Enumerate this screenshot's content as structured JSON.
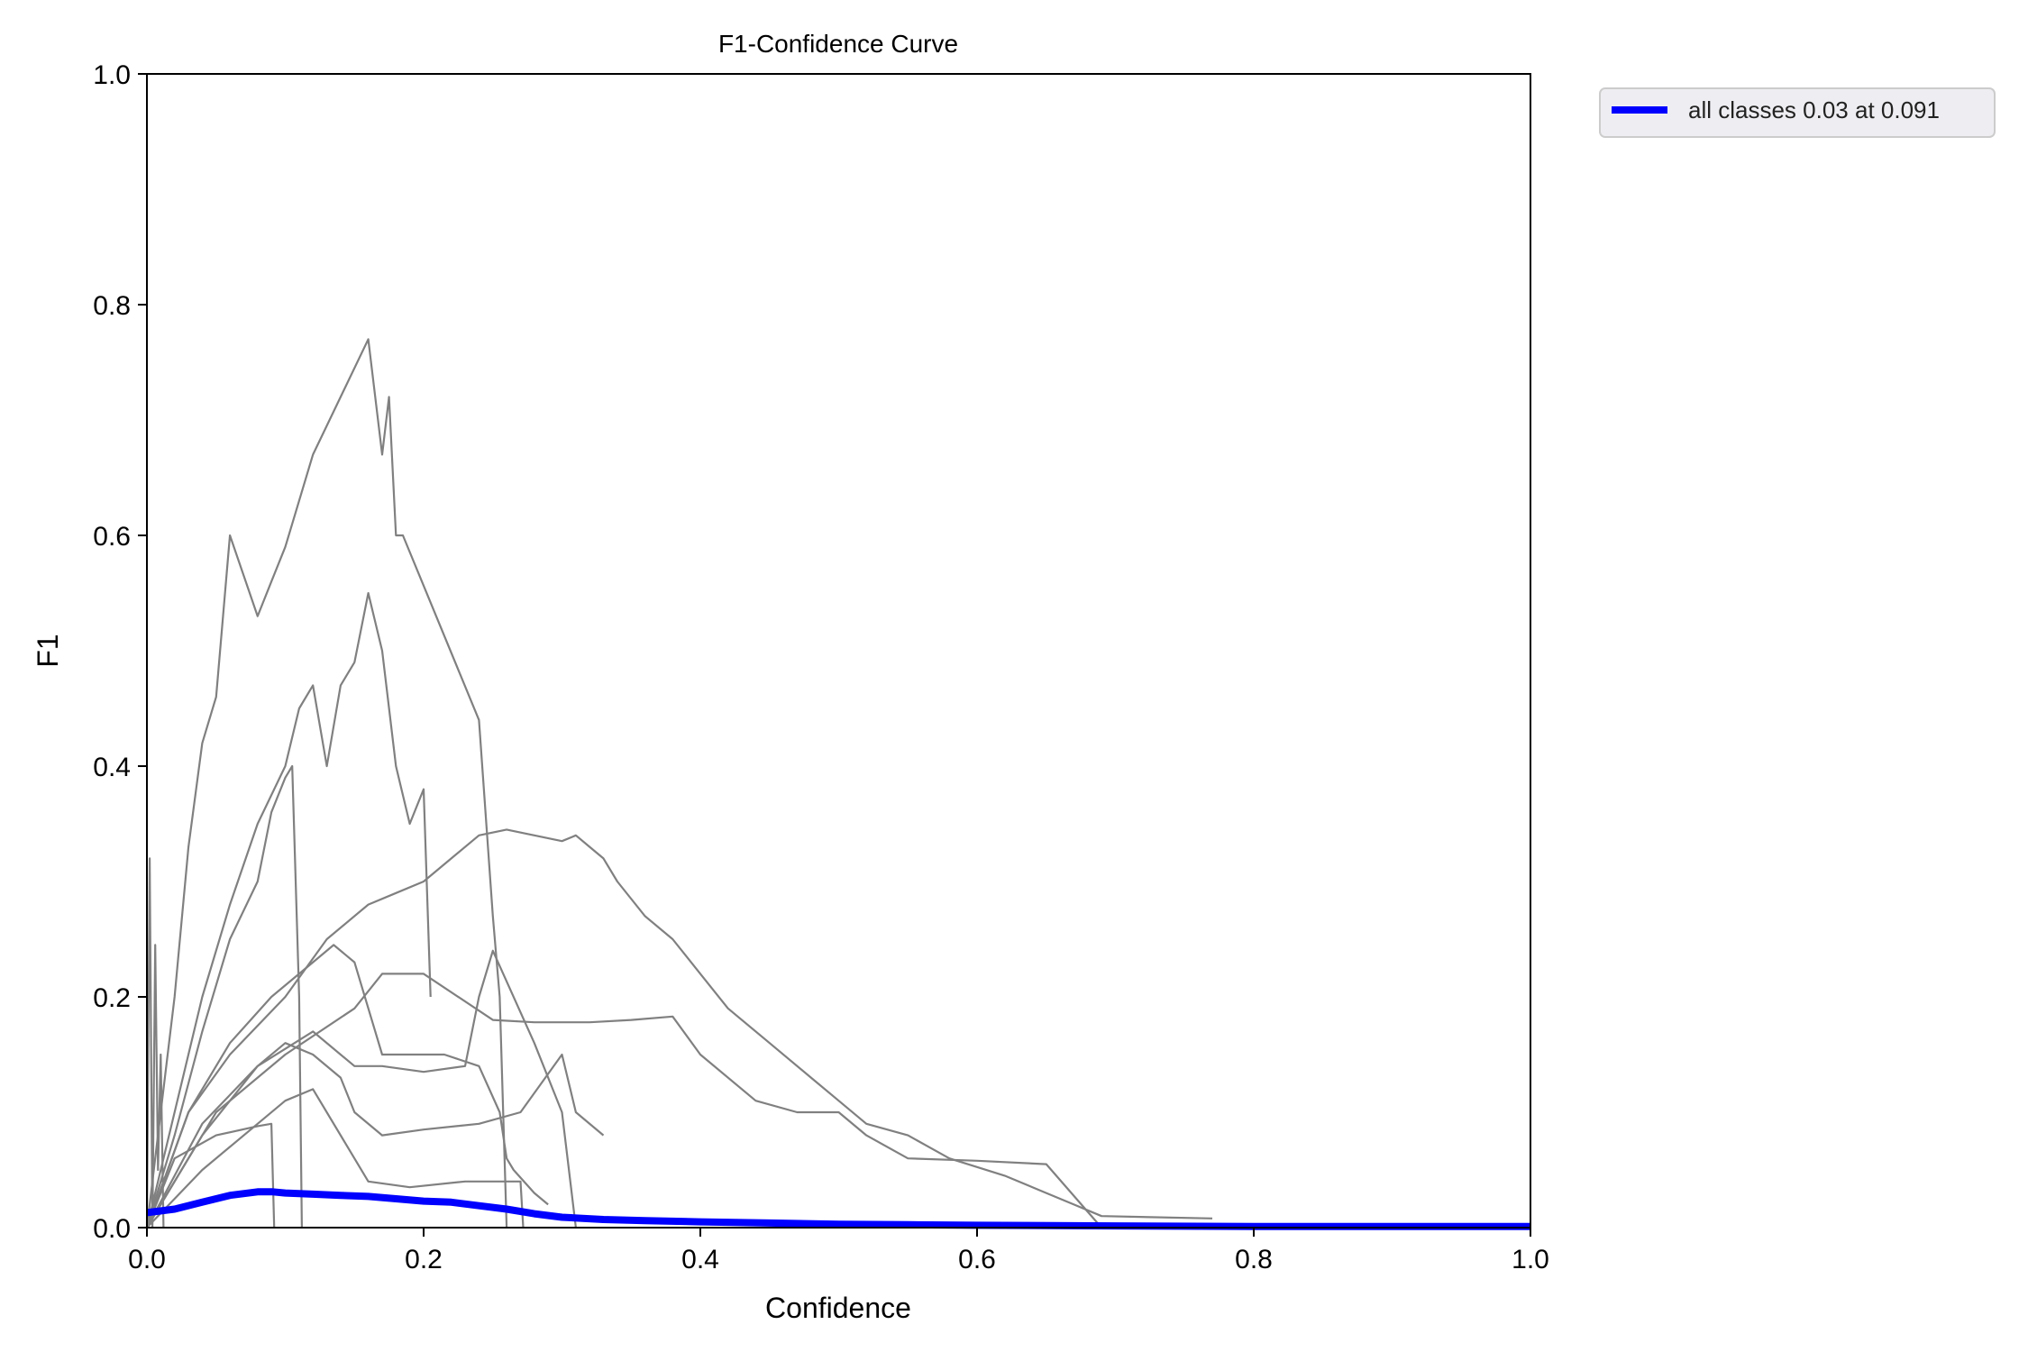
{
  "chart_data": {
    "type": "line",
    "title": "F1-Confidence Curve",
    "xlabel": "Confidence",
    "ylabel": "F1",
    "xlim": [
      0,
      1
    ],
    "ylim": [
      0,
      1
    ],
    "xticks": [
      "0.0",
      "0.2",
      "0.4",
      "0.6",
      "0.8",
      "1.0"
    ],
    "yticks": [
      "0.0",
      "0.2",
      "0.4",
      "0.6",
      "0.8",
      "1.0"
    ],
    "grid": false,
    "legend_position": "outside-top-right",
    "colors": {
      "class_curves": "#808080",
      "all_classes": "#0000ff"
    },
    "legend": [
      "all classes 0.03 at 0.091"
    ],
    "series": [
      {
        "x": [
          0.0,
          0.01,
          0.02,
          0.03,
          0.04,
          0.05,
          0.06,
          0.08,
          0.09,
          0.1,
          0.105,
          0.12,
          0.14,
          0.16,
          0.17,
          0.175,
          0.18,
          0.185,
          0.24,
          0.25,
          0.255,
          0.26
        ],
        "y": [
          0.0,
          0.1,
          0.2,
          0.33,
          0.42,
          0.46,
          0.6,
          0.53,
          0.56,
          0.59,
          0.61,
          0.67,
          0.72,
          0.77,
          0.67,
          0.72,
          0.6,
          0.6,
          0.44,
          0.27,
          0.2,
          0.0
        ]
      },
      {
        "x": [
          0.0,
          0.02,
          0.04,
          0.06,
          0.08,
          0.1,
          0.11,
          0.12,
          0.13,
          0.14,
          0.15,
          0.16,
          0.17,
          0.18,
          0.19,
          0.2,
          0.205
        ],
        "y": [
          0.0,
          0.1,
          0.2,
          0.28,
          0.35,
          0.4,
          0.45,
          0.47,
          0.4,
          0.47,
          0.49,
          0.55,
          0.5,
          0.4,
          0.35,
          0.38,
          0.2
        ]
      },
      {
        "x": [
          0.0,
          0.02,
          0.04,
          0.06,
          0.08,
          0.09,
          0.1,
          0.105,
          0.11,
          0.112
        ],
        "y": [
          0.0,
          0.08,
          0.17,
          0.25,
          0.3,
          0.36,
          0.39,
          0.4,
          0.2,
          0.0
        ]
      },
      {
        "x": [
          0.0,
          0.03,
          0.06,
          0.1,
          0.13,
          0.16,
          0.18,
          0.2,
          0.22,
          0.24,
          0.26,
          0.28,
          0.3,
          0.31,
          0.32,
          0.33,
          0.34,
          0.36,
          0.38,
          0.4,
          0.42,
          0.45,
          0.48,
          0.5,
          0.52,
          0.55,
          0.58,
          0.62,
          0.65,
          0.67,
          0.69,
          0.77
        ],
        "y": [
          0.0,
          0.1,
          0.15,
          0.2,
          0.25,
          0.28,
          0.29,
          0.3,
          0.32,
          0.34,
          0.345,
          0.34,
          0.335,
          0.34,
          0.33,
          0.32,
          0.3,
          0.27,
          0.25,
          0.22,
          0.19,
          0.16,
          0.13,
          0.11,
          0.09,
          0.08,
          0.06,
          0.045,
          0.03,
          0.02,
          0.01,
          0.008
        ]
      },
      {
        "x": [
          0.0,
          0.03,
          0.06,
          0.09,
          0.12,
          0.135,
          0.15,
          0.17,
          0.2,
          0.215,
          0.24,
          0.255,
          0.26,
          0.265,
          0.28,
          0.29
        ],
        "y": [
          0.0,
          0.1,
          0.16,
          0.2,
          0.23,
          0.245,
          0.23,
          0.15,
          0.15,
          0.15,
          0.14,
          0.1,
          0.06,
          0.05,
          0.03,
          0.02
        ]
      },
      {
        "x": [
          0.0,
          0.05,
          0.1,
          0.15,
          0.17,
          0.2,
          0.25,
          0.28,
          0.3,
          0.32,
          0.35,
          0.38,
          0.4,
          0.44,
          0.47,
          0.5,
          0.52,
          0.55,
          0.6,
          0.65,
          0.69
        ],
        "y": [
          0.0,
          0.1,
          0.15,
          0.19,
          0.22,
          0.22,
          0.18,
          0.178,
          0.178,
          0.178,
          0.18,
          0.183,
          0.15,
          0.11,
          0.1,
          0.1,
          0.08,
          0.06,
          0.058,
          0.055,
          0.0
        ]
      },
      {
        "x": [
          0.0,
          0.04,
          0.08,
          0.12,
          0.15,
          0.17,
          0.2,
          0.23,
          0.24,
          0.25,
          0.28,
          0.3,
          0.31
        ],
        "y": [
          0.0,
          0.09,
          0.14,
          0.17,
          0.14,
          0.14,
          0.135,
          0.14,
          0.2,
          0.24,
          0.16,
          0.1,
          0.0
        ]
      },
      {
        "x": [
          0.0,
          0.04,
          0.08,
          0.1,
          0.12,
          0.14,
          0.15,
          0.17,
          0.2,
          0.24,
          0.27,
          0.3,
          0.31,
          0.33
        ],
        "y": [
          0.0,
          0.08,
          0.14,
          0.16,
          0.15,
          0.13,
          0.1,
          0.08,
          0.085,
          0.09,
          0.1,
          0.15,
          0.1,
          0.08
        ]
      },
      {
        "x": [
          0.0,
          0.02,
          0.05,
          0.08,
          0.09,
          0.092
        ],
        "y": [
          0.0,
          0.06,
          0.08,
          0.088,
          0.09,
          0.0
        ]
      },
      {
        "x": [
          0.0,
          0.04,
          0.08,
          0.1,
          0.12,
          0.16,
          0.19,
          0.23,
          0.26,
          0.27,
          0.272
        ],
        "y": [
          0.0,
          0.05,
          0.09,
          0.11,
          0.12,
          0.04,
          0.035,
          0.04,
          0.04,
          0.04,
          0.0
        ]
      },
      {
        "x": [
          0.0,
          0.002,
          0.004,
          0.006,
          0.008,
          0.01,
          0.012
        ],
        "y": [
          0.0,
          0.32,
          0.0,
          0.245,
          0.05,
          0.15,
          0.0
        ]
      },
      {
        "name": "all classes 0.03 at 0.091",
        "highlight": true,
        "x": [
          0.0,
          0.02,
          0.04,
          0.06,
          0.08,
          0.091,
          0.1,
          0.12,
          0.14,
          0.16,
          0.18,
          0.2,
          0.22,
          0.24,
          0.26,
          0.28,
          0.3,
          0.33,
          0.36,
          0.4,
          0.45,
          0.5,
          0.55,
          0.6,
          0.7,
          0.8,
          0.9,
          1.0
        ],
        "y": [
          0.013,
          0.016,
          0.022,
          0.028,
          0.031,
          0.031,
          0.03,
          0.029,
          0.028,
          0.027,
          0.025,
          0.023,
          0.022,
          0.019,
          0.016,
          0.012,
          0.009,
          0.007,
          0.006,
          0.005,
          0.004,
          0.003,
          0.0025,
          0.002,
          0.0015,
          0.001,
          0.001,
          0.001
        ]
      }
    ]
  }
}
